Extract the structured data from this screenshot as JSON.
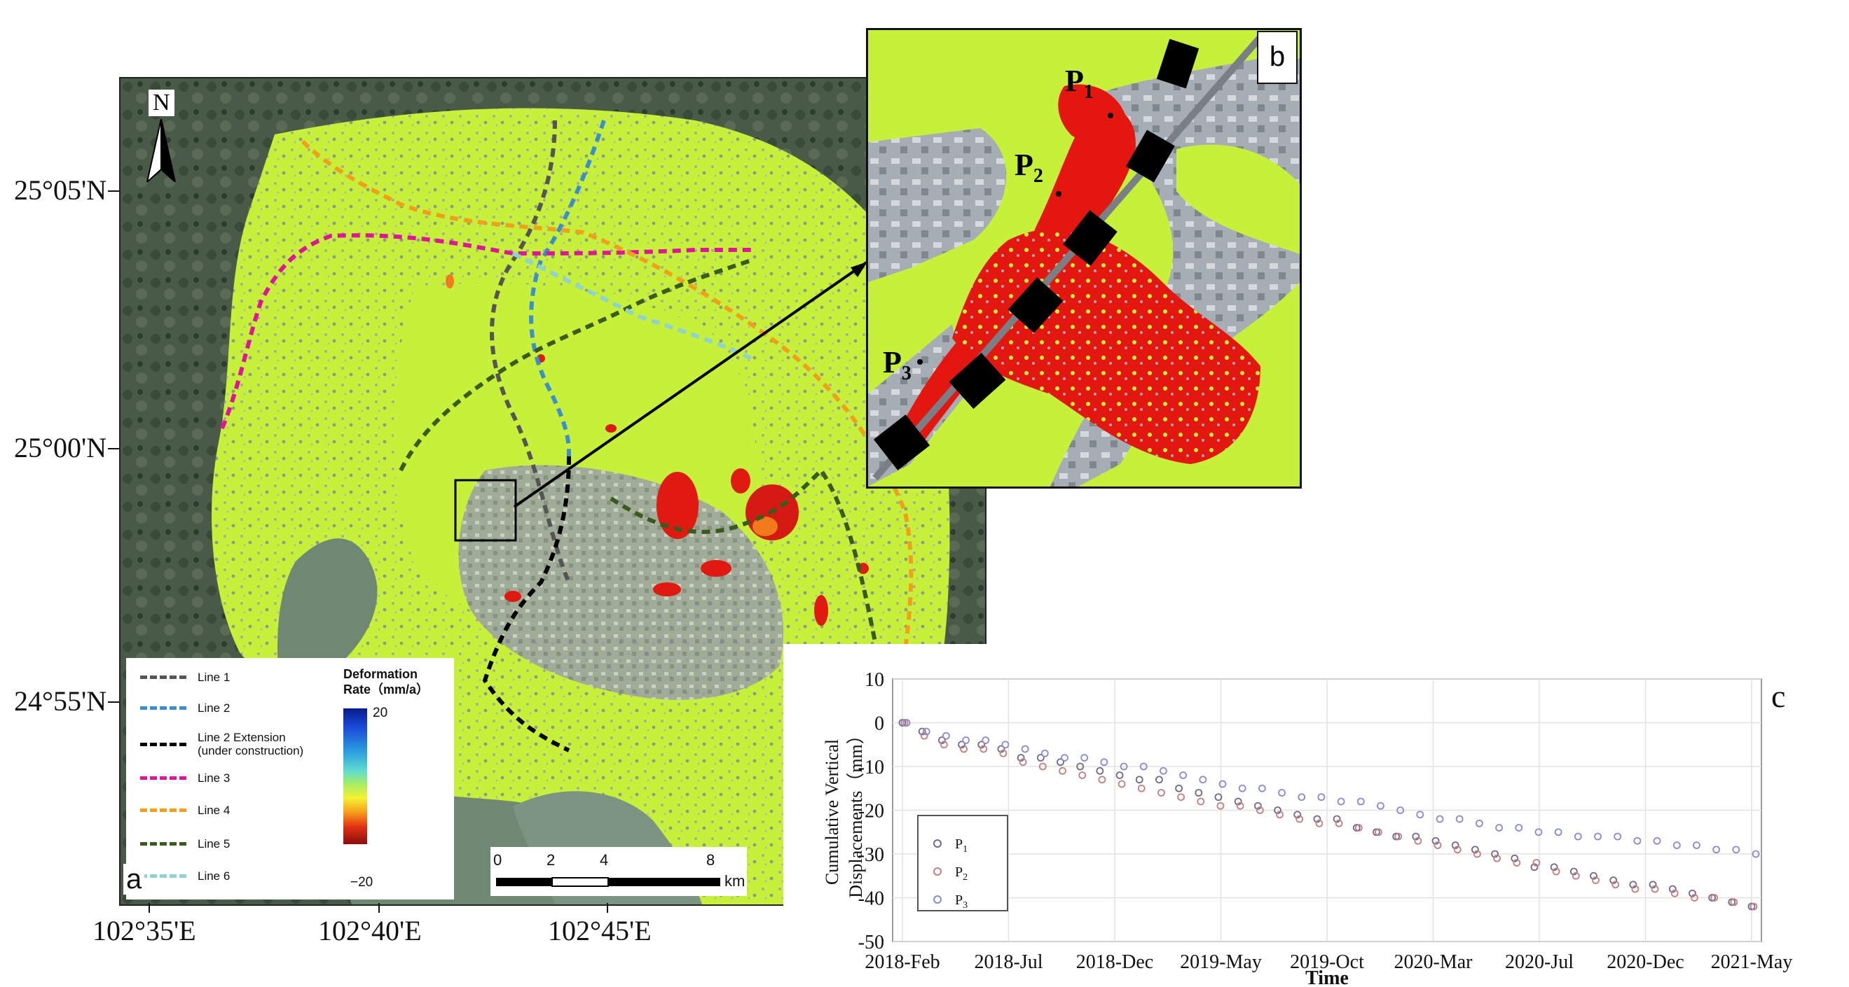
{
  "figure": {
    "panel_a": {
      "label": "a",
      "north_label": "N",
      "lat_labels": [
        "25°05'N",
        "25°00'N",
        "24°55'N"
      ],
      "lon_labels": [
        "102°35'E",
        "102°40'E",
        "102°45'E"
      ],
      "legend": {
        "lines": [
          {
            "label": "Line 1",
            "color": "#555555"
          },
          {
            "label": "Line 2",
            "color": "#3b8fd0"
          },
          {
            "label": "Line 2 Extension",
            "sublabel": "(under construction)",
            "color": "#000000"
          },
          {
            "label": "Line 3",
            "color": "#e0149a"
          },
          {
            "label": "Line 4",
            "color": "#f2a01c"
          },
          {
            "label": "Line 5",
            "color": "#3a5a1e"
          },
          {
            "label": "Line 6",
            "color": "#8fd3d0"
          }
        ],
        "colorbar_title_1": "Deformation",
        "colorbar_title_2": "Rate（mm/a）",
        "colorbar_max": "20",
        "colorbar_min": "−20"
      },
      "scalebar": {
        "ticks": [
          "0",
          "2",
          "4",
          "8"
        ],
        "unit": "km"
      }
    },
    "panel_b": {
      "label": "b",
      "points": [
        {
          "name": "P",
          "sub": "1"
        },
        {
          "name": "P",
          "sub": "2"
        },
        {
          "name": "P",
          "sub": "3"
        }
      ]
    },
    "panel_c": {
      "label": "c"
    }
  },
  "chart_data": {
    "type": "scatter",
    "xlabel": "Time",
    "ylabel_line1": "Cumulative Vertical",
    "ylabel_line2": "Displacements（mm）",
    "x_tick_labels": [
      "2018-Feb",
      "2018-Jul",
      "2018-Dec",
      "2019-May",
      "2019-Oct",
      "2020-Mar",
      "2020-Jul",
      "2020-Dec",
      "2021-May"
    ],
    "y_ticks": [
      10,
      0,
      -10,
      -20,
      -30,
      -40,
      -50
    ],
    "ylim": [
      -50,
      10
    ],
    "grid": true,
    "marker": "open-circle",
    "legend_position": "lower-left",
    "series": [
      {
        "name": "P1",
        "color": "#6b6b8a",
        "values": [
          0,
          -2,
          -4,
          -5,
          -5,
          -6,
          -8,
          -8,
          -9,
          -10,
          -11,
          -12,
          -13,
          -13,
          -15,
          -16,
          -17,
          -18,
          -19,
          -20,
          -21,
          -22,
          -22,
          -24,
          -25,
          -26,
          -26,
          -27,
          -28,
          -29,
          -30,
          -31,
          -33,
          -33,
          -34,
          -35,
          -36,
          -37,
          -37,
          -38,
          -39,
          -40,
          -41,
          -42
        ]
      },
      {
        "name": "P2",
        "color": "#c08080",
        "values": [
          0,
          -3,
          -5,
          -6,
          -6,
          -7,
          -9,
          -10,
          -11,
          -12,
          -13,
          -14,
          -15,
          -16,
          -17,
          -18,
          -19,
          -19,
          -20,
          -21,
          -22,
          -23,
          -23,
          -24,
          -25,
          -26,
          -27,
          -28,
          -29,
          -30,
          -31,
          -32,
          -32,
          -34,
          -35,
          -36,
          -37,
          -38,
          -38,
          -39,
          -40,
          -40,
          -41,
          -42
        ]
      },
      {
        "name": "P3",
        "color": "#8a8ad0",
        "values": [
          0,
          -2,
          -3,
          -4,
          -4,
          -5,
          -6,
          -7,
          -8,
          -8,
          -9,
          -10,
          -10,
          -11,
          -12,
          -13,
          -14,
          -15,
          -15,
          -16,
          -17,
          -17,
          -18,
          -18,
          -19,
          -20,
          -21,
          -22,
          -22,
          -23,
          -24,
          -24,
          -25,
          -25,
          -26,
          -26,
          -26,
          -27,
          -27,
          -28,
          -28,
          -29,
          -29,
          -30
        ]
      }
    ]
  }
}
